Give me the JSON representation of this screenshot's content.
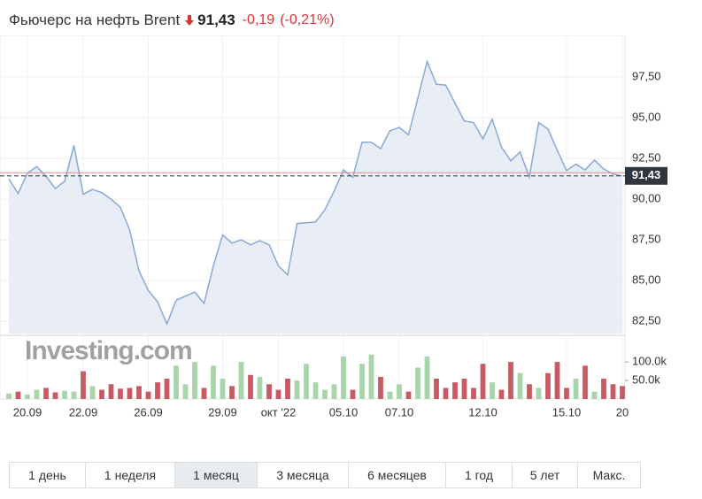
{
  "chart_data": {
    "type": "line",
    "title": "Фьючерс на нефть Brent",
    "last": {
      "value": 91.43,
      "label": "91,43"
    },
    "change": "-0,19",
    "change_pct": "(-0,21%)",
    "reference_value": 91.62,
    "watermark": "Investing.com",
    "color": "#8aa9d6",
    "fill": "#e9eef6",
    "grid": true,
    "categories": [
      null,
      null,
      "20.09",
      null,
      null,
      null,
      null,
      null,
      "22.09",
      null,
      null,
      null,
      null,
      null,
      null,
      "26.09",
      null,
      null,
      null,
      null,
      null,
      null,
      null,
      "29.09",
      null,
      null,
      null,
      null,
      null,
      "окт '22",
      null,
      null,
      null,
      null,
      null,
      null,
      "05.10",
      null,
      null,
      null,
      null,
      null,
      "07.10",
      null,
      null,
      null,
      null,
      null,
      null,
      null,
      null,
      "12.10",
      null,
      null,
      null,
      null,
      null,
      null,
      null,
      null,
      "15.10",
      null,
      null,
      null,
      null,
      null,
      "20"
    ],
    "values": [
      91.25,
      90.35,
      91.6,
      92.0,
      91.4,
      90.65,
      91.1,
      93.3,
      90.3,
      90.6,
      90.4,
      90.0,
      89.5,
      88.1,
      85.6,
      84.4,
      83.7,
      82.35,
      83.8,
      84.05,
      84.3,
      83.6,
      85.9,
      87.8,
      87.3,
      87.5,
      87.2,
      87.45,
      87.2,
      85.9,
      85.35,
      88.5,
      88.55,
      88.6,
      89.35,
      90.5,
      91.8,
      91.35,
      93.5,
      93.5,
      93.1,
      94.2,
      94.4,
      93.95,
      96.2,
      98.45,
      97.05,
      97.0,
      95.9,
      94.8,
      94.7,
      93.7,
      94.9,
      93.2,
      92.35,
      92.9,
      91.35,
      94.7,
      94.3,
      93.0,
      91.75,
      92.15,
      91.8,
      92.4,
      91.85,
      91.55,
      91.43
    ],
    "ylim": [
      81.75,
      100
    ],
    "yticks": [
      {
        "value": 82.5,
        "label": "82,50"
      },
      {
        "value": 85,
        "label": "85,00"
      },
      {
        "value": 87.5,
        "label": "87,50"
      },
      {
        "value": 90,
        "label": "90,00"
      },
      {
        "value": 92.5,
        "label": "92,50"
      },
      {
        "value": 95,
        "label": "95,00"
      },
      {
        "value": 97.5,
        "label": "97,50"
      }
    ],
    "volume": {
      "values": [
        15000,
        20000,
        12000,
        25000,
        30000,
        18000,
        22000,
        20000,
        75000,
        35000,
        25000,
        40000,
        28000,
        30000,
        35000,
        20000,
        45000,
        55000,
        90000,
        40000,
        100000,
        30000,
        90000,
        55000,
        35000,
        100000,
        65000,
        60000,
        40000,
        25000,
        55000,
        50000,
        95000,
        45000,
        25000,
        40000,
        115000,
        25000,
        95000,
        120000,
        60000,
        20000,
        40000,
        20000,
        85000,
        115000,
        55000,
        30000,
        45000,
        55000,
        30000,
        95000,
        45000,
        25000,
        100000,
        70000,
        40000,
        30000,
        70000,
        100000,
        30000,
        55000,
        90000,
        20000,
        55000,
        40000,
        35000
      ],
      "ylim": [
        0,
        160000
      ],
      "yticks": [
        {
          "value": 50000,
          "label": "50.0k"
        },
        {
          "value": 100000,
          "label": "100.0k"
        }
      ],
      "up_color": "#a8d5a9",
      "down_color": "#c85a64"
    }
  },
  "controls": {
    "ranges": [
      "1 день",
      "1 неделя",
      "1 месяц",
      "3 месяца",
      "6 месяцев",
      "1 год",
      "5 лет",
      "Макс."
    ],
    "active": 2
  }
}
